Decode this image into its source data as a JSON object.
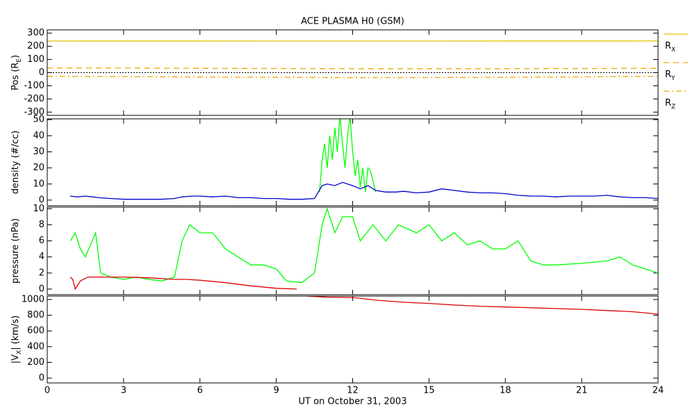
{
  "chart_data": [
    {
      "type": "line",
      "title": "ACE PLASMA H0 (GSM)",
      "ylabel": [
        "Pos (R",
        "E",
        ")"
      ],
      "xlim": [
        0,
        24
      ],
      "xticks": [
        0,
        3,
        6,
        9,
        12,
        15,
        18,
        21,
        24
      ],
      "ylim": [
        -325,
        325
      ],
      "yticks": [
        300,
        200,
        100,
        0,
        -100,
        -200,
        -300
      ],
      "zero_line": true,
      "legend": "right",
      "series": [
        {
          "name": [
            "R",
            "X"
          ],
          "color": "#e6c000",
          "dash": "solid",
          "x": [
            0,
            24
          ],
          "values": [
            240,
            241
          ]
        },
        {
          "name": [
            "R",
            "Y"
          ],
          "color": "#f0a800",
          "dash": "dashed",
          "x": [
            0,
            6,
            12,
            18,
            24
          ],
          "values": [
            36,
            33,
            30,
            30,
            33
          ]
        },
        {
          "name": [
            "R",
            "Z"
          ],
          "color": "#f0a800",
          "dash": "dashdot",
          "x": [
            0,
            6,
            12,
            18,
            24
          ],
          "values": [
            -28,
            -33,
            -38,
            -36,
            -28
          ]
        }
      ]
    },
    {
      "type": "line",
      "ylabel": [
        "density (#/cc)"
      ],
      "xlim": [
        0,
        24
      ],
      "xticks": [
        0,
        3,
        6,
        9,
        12,
        15,
        18,
        21,
        24
      ],
      "ylim": [
        -3.5,
        50.5
      ],
      "yticks": [
        0,
        10,
        20,
        30,
        40,
        50
      ],
      "series": [
        {
          "color": "#00ff00",
          "dash": "solid",
          "x": [
            10.7,
            10.8,
            10.9,
            11.0,
            11.1,
            11.2,
            11.3,
            11.4,
            11.5,
            11.6,
            11.7,
            11.8,
            11.9,
            12.0,
            12.1,
            12.2,
            12.3,
            12.4,
            12.5,
            12.6,
            12.7,
            12.8,
            12.9
          ],
          "values": [
            5,
            25,
            35,
            20,
            40,
            25,
            45,
            30,
            52,
            35,
            20,
            40,
            52,
            30,
            15,
            25,
            8,
            20,
            5,
            20,
            18,
            12,
            5
          ]
        },
        {
          "color": "#0000cc",
          "dash": "solid",
          "x": [
            0.9,
            1.2,
            1.5,
            1.8,
            2.0,
            2.5,
            3,
            3.5,
            4,
            4.5,
            5,
            5.3,
            5.7,
            6,
            6.5,
            7,
            7.5,
            8,
            8.5,
            9,
            9.5,
            10,
            10.5,
            10.8,
            11,
            11.3,
            11.6,
            12,
            12.3,
            12.6,
            12.9,
            13.3,
            13.7,
            14,
            14.5,
            15,
            15.5,
            16,
            16.5,
            17,
            17.5,
            18,
            18.5,
            19,
            19.5,
            20,
            20.5,
            21,
            21.5,
            22,
            22.5,
            23,
            23.5,
            24
          ],
          "values": [
            2.5,
            2,
            2.5,
            2,
            1.5,
            1,
            0.5,
            0.5,
            0.5,
            0.5,
            1,
            2,
            2.5,
            2.5,
            2,
            2.5,
            1.5,
            1.5,
            1,
            1,
            0.5,
            0.5,
            1,
            9,
            10,
            9,
            11,
            9,
            7,
            9,
            6,
            5,
            5,
            5.5,
            4.5,
            5,
            7,
            6,
            5,
            4.5,
            4.5,
            4,
            3,
            2.5,
            2.5,
            2,
            2.5,
            2.5,
            2.5,
            3,
            2,
            1.5,
            1.5,
            1
          ]
        }
      ]
    },
    {
      "type": "line",
      "ylabel": [
        "pressure (nPa)"
      ],
      "xlim": [
        0,
        24
      ],
      "xticks": [
        0,
        3,
        6,
        9,
        12,
        15,
        18,
        21,
        24
      ],
      "ylim": [
        -0.7,
        10.2
      ],
      "yticks": [
        0,
        2,
        4,
        6,
        8,
        10
      ],
      "series": [
        {
          "color": "#00ff00",
          "dash": "solid",
          "x": [
            0.9,
            1.1,
            1.3,
            1.5,
            1.7,
            1.9,
            2.1,
            2.5,
            3,
            3.5,
            4,
            4.5,
            5,
            5.3,
            5.6,
            6,
            6.5,
            7,
            7.5,
            8,
            8.5,
            9,
            9.4,
            10,
            10.5,
            10.8,
            11,
            11.3,
            11.6,
            12,
            12.3,
            12.8,
            13.3,
            13.8,
            14.5,
            15,
            15.5,
            16,
            16.5,
            17,
            17.5,
            18,
            18.5,
            19,
            19.5,
            20,
            21,
            22,
            22.5,
            23,
            23.5,
            24
          ],
          "values": [
            6,
            7,
            5,
            4,
            5.5,
            7,
            2,
            1.5,
            1.2,
            1.5,
            1.2,
            1,
            1.5,
            6,
            8,
            7,
            7,
            5,
            4,
            3,
            3,
            2.5,
            1,
            0.8,
            2,
            8,
            10,
            7,
            9,
            9,
            6,
            8,
            6,
            8,
            7,
            8,
            6,
            7,
            5.5,
            6,
            5,
            5,
            6,
            3.5,
            3,
            3,
            3.2,
            3.5,
            4,
            3,
            2.5,
            2
          ]
        },
        {
          "color": "#dd0000",
          "dash": "solid",
          "x": [
            0.9,
            1.0,
            1.1,
            1.3,
            1.6,
            2,
            3,
            4,
            5,
            5.5,
            6,
            7,
            8,
            9,
            9.8
          ],
          "values": [
            1.5,
            1.2,
            0,
            1,
            1.5,
            1.5,
            1.5,
            1.4,
            1.2,
            1.2,
            1.1,
            0.8,
            0.4,
            0.1,
            0
          ]
        }
      ]
    },
    {
      "type": "line",
      "ylabel": [
        "|V",
        "X",
        "| (km/s)"
      ],
      "xlabel": "UT on October 31, 2003",
      "xlim": [
        0,
        24
      ],
      "xticks": [
        0,
        3,
        6,
        9,
        12,
        15,
        18,
        21,
        24
      ],
      "ylim": [
        -62,
        1044
      ],
      "yticks": [
        0,
        200,
        400,
        600,
        800,
        1000
      ],
      "series": [
        {
          "color": "#dd0000",
          "dash": "solid",
          "x": [
            10.2,
            11,
            12,
            13,
            14,
            15,
            16,
            17,
            18,
            19,
            20,
            21,
            22,
            23,
            24
          ],
          "values": [
            1044,
            1030,
            1025,
            990,
            965,
            950,
            930,
            915,
            905,
            895,
            885,
            875,
            860,
            845,
            815
          ]
        }
      ]
    }
  ]
}
